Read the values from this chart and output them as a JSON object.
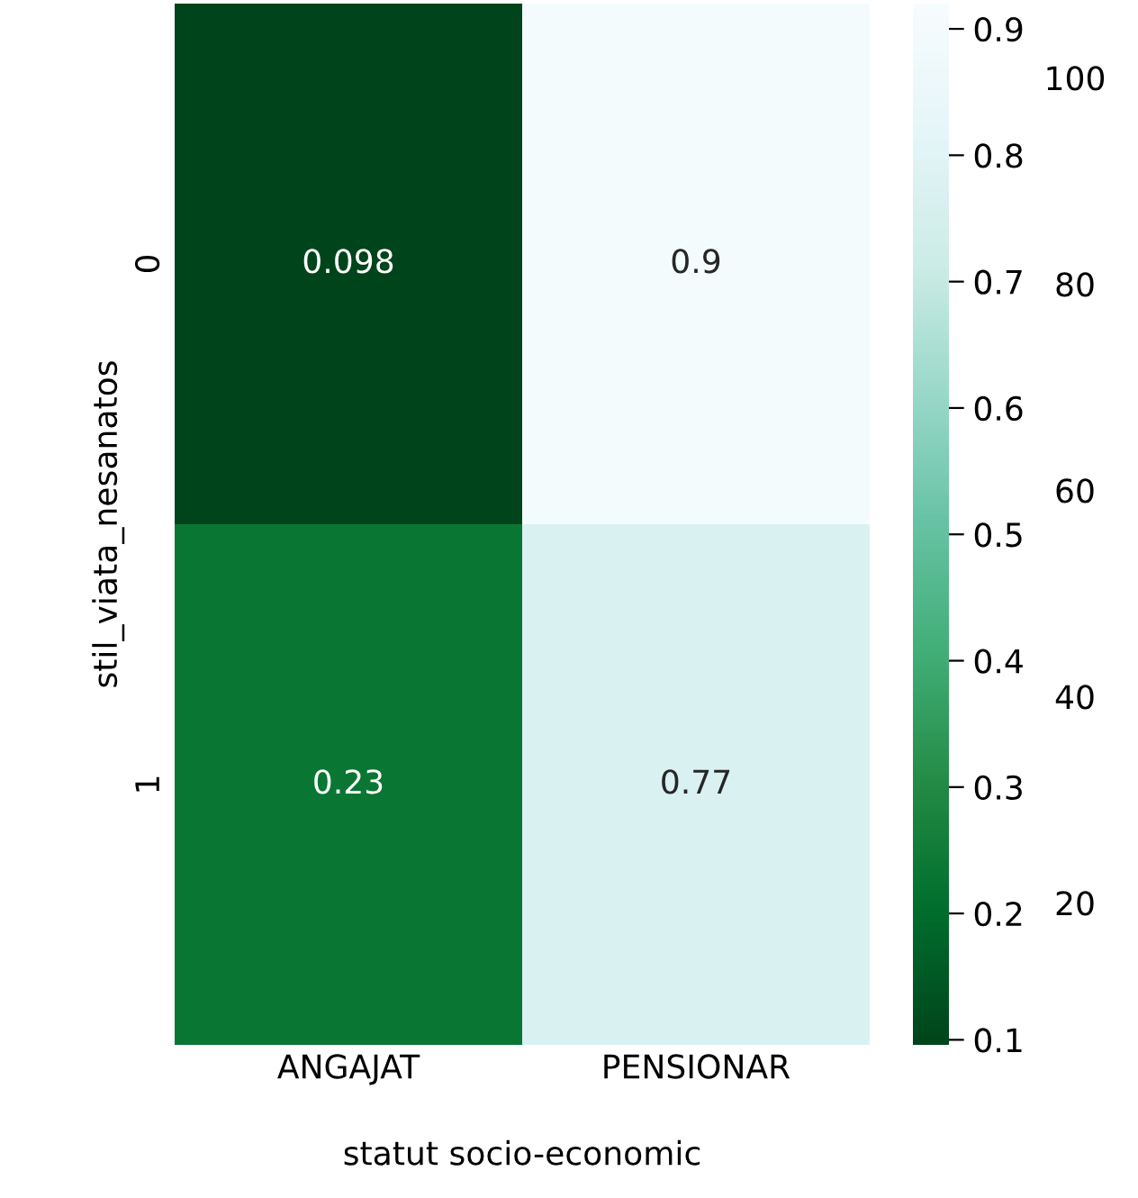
{
  "chart_data": {
    "type": "heatmap",
    "xlabel": "statut socio-economic",
    "ylabel": "stil_viata_nesanatos",
    "categories": [
      "ANGAJAT",
      "PENSIONAR"
    ],
    "y_categories": [
      "0",
      "1"
    ],
    "cells": [
      [
        0.098,
        0.9
      ],
      [
        0.23,
        0.77
      ]
    ],
    "cell_labels": [
      [
        "0.098",
        "0.9"
      ],
      [
        "0.23",
        "0.77"
      ]
    ],
    "clim": [
      0.096,
      0.92
    ],
    "cticks": [
      0.1,
      0.2,
      0.3,
      0.4,
      0.5,
      0.6,
      0.7,
      0.8,
      0.9
    ],
    "annotations": [
      "20",
      "40",
      "60",
      "80",
      "100"
    ]
  }
}
